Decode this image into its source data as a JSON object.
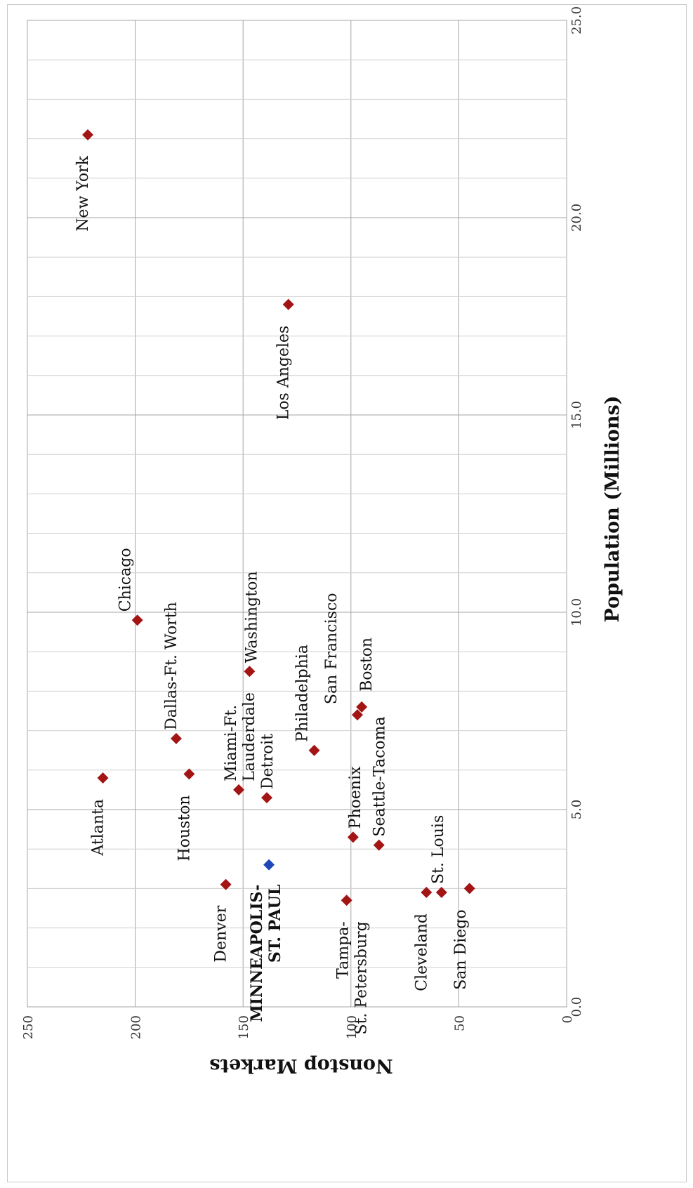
{
  "chart_data": {
    "type": "scatter",
    "orientation": "rotated-90",
    "xlabel": "Nonstop Markets",
    "ylabel": "Population (Millions)",
    "xlim": [
      0,
      250
    ],
    "ylim": [
      0.0,
      25.0
    ],
    "x_ticks": [
      "0",
      "50",
      "100",
      "150",
      "200",
      "250"
    ],
    "y_ticks": [
      "0.0",
      "5.0",
      "10.0",
      "15.0",
      "20.0",
      "25.0"
    ],
    "grid": true,
    "colors": {
      "default": "#a31515",
      "highlight": "#1f47b8"
    },
    "points": [
      {
        "label": "New York",
        "x": 222,
        "y": 22.1
      },
      {
        "label": "Los Angeles",
        "x": 129,
        "y": 17.8
      },
      {
        "label": "Chicago",
        "x": 199,
        "y": 9.8
      },
      {
        "label": "Washington",
        "x": 147,
        "y": 8.5
      },
      {
        "label": "Dallas-Ft. Worth",
        "x": 181,
        "y": 6.8
      },
      {
        "label": "Boston",
        "x": 95,
        "y": 7.6
      },
      {
        "label": "San Francisco",
        "x": 97,
        "y": 7.4
      },
      {
        "label": "Philadelphia",
        "x": 117,
        "y": 6.5
      },
      {
        "label": "Atlanta",
        "x": 215,
        "y": 5.8
      },
      {
        "label": "Houston",
        "x": 175,
        "y": 5.9
      },
      {
        "label": "Miami-Ft. Lauderdale",
        "x": 152,
        "y": 5.5
      },
      {
        "label": "Detroit",
        "x": 139,
        "y": 5.3
      },
      {
        "label": "Phoenix",
        "x": 99,
        "y": 4.3
      },
      {
        "label": "Seattle-Tacoma",
        "x": 87,
        "y": 4.1
      },
      {
        "label": "MINNEAPOLIS-ST. PAUL",
        "x": 138,
        "y": 3.6,
        "highlight": true
      },
      {
        "label": "Denver",
        "x": 158,
        "y": 3.1
      },
      {
        "label": "Tampa-St. Petersburg",
        "x": 102,
        "y": 2.7
      },
      {
        "label": "Cleveland",
        "x": 65,
        "y": 2.9
      },
      {
        "label": "St. Louis",
        "x": 58,
        "y": 2.9
      },
      {
        "label": "San Diego",
        "x": 45,
        "y": 3.0
      }
    ]
  }
}
